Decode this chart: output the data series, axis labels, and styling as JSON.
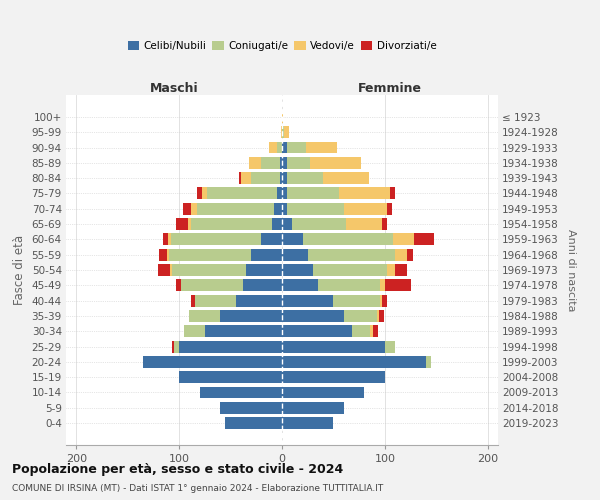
{
  "age_groups": [
    "0-4",
    "5-9",
    "10-14",
    "15-19",
    "20-24",
    "25-29",
    "30-34",
    "35-39",
    "40-44",
    "45-49",
    "50-54",
    "55-59",
    "60-64",
    "65-69",
    "70-74",
    "75-79",
    "80-84",
    "85-89",
    "90-94",
    "95-99",
    "100+"
  ],
  "birth_years": [
    "2019-2023",
    "2014-2018",
    "2009-2013",
    "2004-2008",
    "1999-2003",
    "1994-1998",
    "1989-1993",
    "1984-1988",
    "1979-1983",
    "1974-1978",
    "1969-1973",
    "1964-1968",
    "1959-1963",
    "1954-1958",
    "1949-1953",
    "1944-1948",
    "1939-1943",
    "1934-1938",
    "1929-1933",
    "1924-1928",
    "≤ 1923"
  ],
  "male": {
    "celibi": [
      55,
      60,
      80,
      100,
      135,
      100,
      75,
      60,
      45,
      38,
      35,
      30,
      20,
      10,
      8,
      5,
      2,
      2,
      0,
      0,
      0
    ],
    "coniugati": [
      0,
      0,
      0,
      0,
      0,
      5,
      20,
      30,
      40,
      60,
      72,
      80,
      88,
      78,
      75,
      68,
      28,
      18,
      5,
      0,
      0
    ],
    "vedovi": [
      0,
      0,
      0,
      0,
      0,
      0,
      0,
      0,
      0,
      0,
      2,
      2,
      3,
      3,
      5,
      5,
      10,
      12,
      8,
      1,
      0
    ],
    "divorziati": [
      0,
      0,
      0,
      0,
      0,
      2,
      0,
      0,
      3,
      5,
      12,
      8,
      5,
      12,
      8,
      5,
      2,
      0,
      0,
      0,
      0
    ]
  },
  "female": {
    "nubili": [
      50,
      60,
      80,
      100,
      140,
      100,
      68,
      60,
      50,
      35,
      30,
      25,
      20,
      10,
      5,
      5,
      5,
      5,
      5,
      0,
      0
    ],
    "coniugate": [
      0,
      0,
      0,
      0,
      5,
      10,
      18,
      32,
      45,
      60,
      72,
      85,
      88,
      52,
      55,
      50,
      35,
      22,
      18,
      2,
      0
    ],
    "vedove": [
      0,
      0,
      0,
      0,
      0,
      0,
      2,
      2,
      2,
      5,
      8,
      12,
      20,
      35,
      42,
      50,
      45,
      50,
      30,
      5,
      1
    ],
    "divorziate": [
      0,
      0,
      0,
      0,
      0,
      0,
      5,
      5,
      5,
      25,
      12,
      5,
      20,
      5,
      5,
      5,
      0,
      0,
      0,
      0,
      0
    ]
  },
  "colors": {
    "celibi": "#3d6fa3",
    "coniugati": "#b8cc8e",
    "vedovi": "#f5c76a",
    "divorziati": "#cc2222"
  },
  "xlim": 210,
  "xticks": [
    -200,
    -100,
    0,
    100,
    200
  ],
  "title": "Popolazione per età, sesso e stato civile - 2024",
  "subtitle": "COMUNE DI IRSINA (MT) - Dati ISTAT 1° gennaio 2024 - Elaborazione TUTTITALIA.IT",
  "ylabel_left": "Fasce di età",
  "ylabel_right": "Anni di nascita",
  "xlabel_left": "Maschi",
  "xlabel_right": "Femmine",
  "bg_color": "#f2f2f2",
  "plot_bg": "#ffffff",
  "bar_height": 0.78
}
